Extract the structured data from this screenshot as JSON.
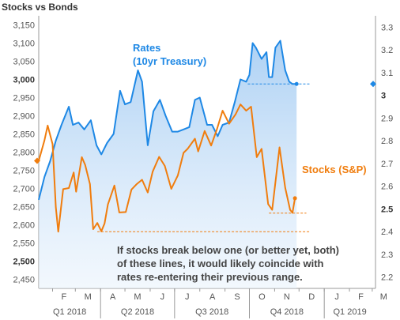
{
  "chart_data": {
    "type": "line",
    "title": "Stocks vs Bonds",
    "x": {
      "months": [
        "F",
        "M",
        "A",
        "M",
        "J",
        "J",
        "A",
        "S",
        "O",
        "N",
        "D",
        "J",
        "F",
        "M"
      ],
      "quarters": [
        "Q1 2018",
        "Q2 2018",
        "Q3 2018",
        "Q4 2018",
        "Q1 2019"
      ],
      "range": [
        "2018-01-15",
        "2019-03-05"
      ]
    },
    "y_left": {
      "ticks": [
        "2,450",
        "2,500",
        "2,550",
        "2,600",
        "2,650",
        "2,700",
        "2,750",
        "2,800",
        "2,850",
        "2,900",
        "2,950",
        "3,000",
        "3,050",
        "3,100",
        "3,150"
      ],
      "bold_ticks": [
        "2,500",
        "3,000"
      ],
      "ylim": [
        2425,
        3175
      ]
    },
    "y_right": {
      "ticks": [
        "2.2",
        "2.3",
        "2.4",
        "2.5",
        "2.6",
        "2.7",
        "2.8",
        "2.9",
        "3",
        "3.1",
        "3.2",
        "3.3"
      ],
      "bold_ticks": [
        "2.5",
        "3"
      ],
      "ylim": [
        2.15,
        3.35
      ]
    },
    "series": [
      {
        "name": "Rates\n(10yr Treasury)",
        "axis": "right",
        "color": "#1e88e5",
        "fill": "area",
        "points": [
          [
            "2018-01-15",
            2.54
          ],
          [
            "2018-01-22",
            2.64
          ],
          [
            "2018-01-29",
            2.71
          ],
          [
            "2018-02-05",
            2.8
          ],
          [
            "2018-02-12",
            2.87
          ],
          [
            "2018-02-21",
            2.95
          ],
          [
            "2018-02-26",
            2.87
          ],
          [
            "2018-03-05",
            2.88
          ],
          [
            "2018-03-12",
            2.85
          ],
          [
            "2018-03-20",
            2.89
          ],
          [
            "2018-03-27",
            2.78
          ],
          [
            "2018-04-02",
            2.74
          ],
          [
            "2018-04-09",
            2.79
          ],
          [
            "2018-04-17",
            2.83
          ],
          [
            "2018-04-25",
            3.02
          ],
          [
            "2018-05-01",
            2.96
          ],
          [
            "2018-05-08",
            2.97
          ],
          [
            "2018-05-17",
            3.11
          ],
          [
            "2018-05-22",
            3.06
          ],
          [
            "2018-05-29",
            2.78
          ],
          [
            "2018-06-05",
            2.93
          ],
          [
            "2018-06-13",
            2.98
          ],
          [
            "2018-06-20",
            2.91
          ],
          [
            "2018-06-28",
            2.84
          ],
          [
            "2018-07-05",
            2.84
          ],
          [
            "2018-07-12",
            2.85
          ],
          [
            "2018-07-19",
            2.86
          ],
          [
            "2018-07-26",
            2.98
          ],
          [
            "2018-08-01",
            2.99
          ],
          [
            "2018-08-10",
            2.87
          ],
          [
            "2018-08-16",
            2.87
          ],
          [
            "2018-08-23",
            2.82
          ],
          [
            "2018-08-29",
            2.87
          ],
          [
            "2018-09-06",
            2.88
          ],
          [
            "2018-09-13",
            2.97
          ],
          [
            "2018-09-20",
            3.07
          ],
          [
            "2018-09-27",
            3.06
          ],
          [
            "2018-10-01",
            3.09
          ],
          [
            "2018-10-05",
            3.23
          ],
          [
            "2018-10-09",
            3.21
          ],
          [
            "2018-10-16",
            3.16
          ],
          [
            "2018-10-22",
            3.19
          ],
          [
            "2018-10-25",
            3.08
          ],
          [
            "2018-10-29",
            3.08
          ],
          [
            "2018-11-02",
            3.21
          ],
          [
            "2018-11-08",
            3.24
          ],
          [
            "2018-11-14",
            3.11
          ],
          [
            "2018-11-19",
            3.06
          ],
          [
            "2018-11-23",
            3.05
          ],
          [
            "2018-11-28",
            3.05
          ]
        ],
        "threshold": 3.05
      },
      {
        "name": "Stocks (S&P)",
        "axis": "left",
        "color": "#f07d0e",
        "points": [
          [
            "2018-01-15",
            2776
          ],
          [
            "2018-01-22",
            2832
          ],
          [
            "2018-01-26",
            2873
          ],
          [
            "2018-02-01",
            2822
          ],
          [
            "2018-02-05",
            2649
          ],
          [
            "2018-02-08",
            2581
          ],
          [
            "2018-02-14",
            2698
          ],
          [
            "2018-02-21",
            2701
          ],
          [
            "2018-02-27",
            2744
          ],
          [
            "2018-03-02",
            2691
          ],
          [
            "2018-03-09",
            2786
          ],
          [
            "2018-03-13",
            2765
          ],
          [
            "2018-03-19",
            2712
          ],
          [
            "2018-03-23",
            2588
          ],
          [
            "2018-03-28",
            2605
          ],
          [
            "2018-04-02",
            2582
          ],
          [
            "2018-04-06",
            2604
          ],
          [
            "2018-04-10",
            2656
          ],
          [
            "2018-04-18",
            2708
          ],
          [
            "2018-04-24",
            2634
          ],
          [
            "2018-05-02",
            2635
          ],
          [
            "2018-05-09",
            2697
          ],
          [
            "2018-05-15",
            2711
          ],
          [
            "2018-05-22",
            2724
          ],
          [
            "2018-05-29",
            2689
          ],
          [
            "2018-06-04",
            2746
          ],
          [
            "2018-06-12",
            2787
          ],
          [
            "2018-06-19",
            2762
          ],
          [
            "2018-06-27",
            2699
          ],
          [
            "2018-07-05",
            2736
          ],
          [
            "2018-07-12",
            2798
          ],
          [
            "2018-07-17",
            2809
          ],
          [
            "2018-07-26",
            2837
          ],
          [
            "2018-07-30",
            2802
          ],
          [
            "2018-08-07",
            2858
          ],
          [
            "2018-08-15",
            2818
          ],
          [
            "2018-08-22",
            2862
          ],
          [
            "2018-08-29",
            2914
          ],
          [
            "2018-09-06",
            2878
          ],
          [
            "2018-09-14",
            2904
          ],
          [
            "2018-09-20",
            2931
          ],
          [
            "2018-09-27",
            2914
          ],
          [
            "2018-10-03",
            2925
          ],
          [
            "2018-10-10",
            2786
          ],
          [
            "2018-10-16",
            2809
          ],
          [
            "2018-10-24",
            2657
          ],
          [
            "2018-10-29",
            2641
          ],
          [
            "2018-11-07",
            2813
          ],
          [
            "2018-11-14",
            2702
          ],
          [
            "2018-11-20",
            2641
          ],
          [
            "2018-11-23",
            2633
          ],
          [
            "2018-11-26",
            2673
          ]
        ],
        "threshold": 2632
      }
    ],
    "reference_lines": [
      {
        "axis": "right",
        "value": 3.05,
        "from": "2018-09-29",
        "to": "2018-12-15",
        "color": "#1e88e5"
      },
      {
        "axis": "left",
        "value": 2632,
        "from": "2018-10-25",
        "to": "2018-12-10",
        "color": "#f07d0e"
      },
      {
        "axis": "left",
        "value": 2581,
        "from": "2018-03-28",
        "to": "2018-12-15",
        "color": "#f07d0e"
      }
    ],
    "annotations": {
      "rates_label": [
        "Rates",
        "(10yr Treasury)"
      ],
      "stocks_label": "Stocks (S&P)",
      "note": [
        "If stocks break below one (or better yet, both)",
        "of these lines, it would likely coincide with",
        "rates re-entering their previous range."
      ]
    },
    "colors": {
      "rates": "#1e88e5",
      "stocks": "#f07d0e",
      "axis": "#999999"
    }
  }
}
